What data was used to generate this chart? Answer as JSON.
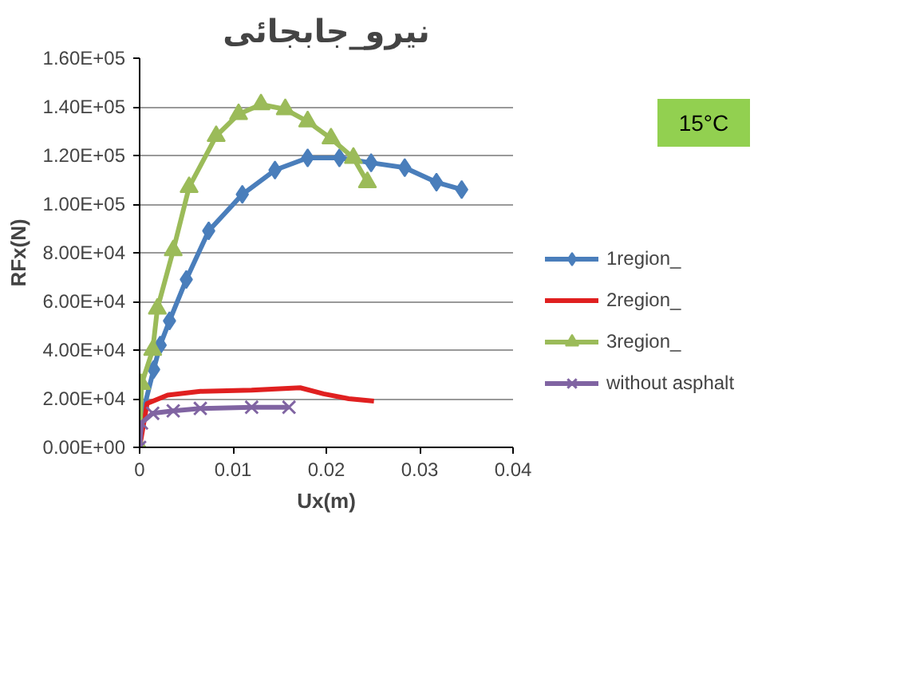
{
  "chart_data": {
    "type": "line",
    "title": "نیرو_جابجائی",
    "xlabel": "Ux(m)",
    "ylabel": "RFx(N)",
    "xlim": [
      0,
      0.04
    ],
    "xticks": [
      0,
      0.01,
      0.02,
      0.03,
      0.04
    ],
    "ylim": [
      0,
      160000
    ],
    "yticks": [
      {
        "value": 0,
        "label": "0.00E+00"
      },
      {
        "value": 20000,
        "label": "2.00E+04"
      },
      {
        "value": 40000,
        "label": "4.00E+04"
      },
      {
        "value": 60000,
        "label": "6.00E+04"
      },
      {
        "value": 80000,
        "label": "8.00E+04"
      },
      {
        "value": 100000,
        "label": "1.00E+05"
      },
      {
        "value": 120000,
        "label": "1.20E+05"
      },
      {
        "value": 140000,
        "label": "1.40E+05"
      },
      {
        "value": 160000,
        "label": "1.60E+05"
      }
    ],
    "grid": "y",
    "legend": "right",
    "annotations": [
      "15°C"
    ],
    "series": [
      {
        "name": "1region_",
        "color": "#4a7ebb",
        "marker": "diamond",
        "x": [
          0,
          0.0002,
          0.0015,
          0.0022,
          0.0032,
          0.005,
          0.0074,
          0.011,
          0.0145,
          0.018,
          0.0214,
          0.0248,
          0.0284,
          0.0318,
          0.0345
        ],
        "values": [
          0,
          12000,
          32000,
          42000,
          52000,
          69000,
          89000,
          104000,
          114000,
          119000,
          119000,
          117000,
          115000,
          109000,
          106000
        ]
      },
      {
        "name": "2region_",
        "color": "#e02020",
        "marker": "none",
        "x": [
          0,
          0.0008,
          0.003,
          0.0065,
          0.012,
          0.0172,
          0.0197,
          0.0224,
          0.0251
        ],
        "values": [
          0,
          18000,
          21500,
          23000,
          23500,
          24500,
          22000,
          20000,
          19000
        ]
      },
      {
        "name": "3region_",
        "color": "#9bbb59",
        "marker": "triangle",
        "x": [
          0,
          0.0002,
          0.0014,
          0.0019,
          0.0036,
          0.0053,
          0.0082,
          0.0106,
          0.013,
          0.0156,
          0.018,
          0.0205,
          0.0229,
          0.0244
        ],
        "values": [
          0,
          26000,
          40000,
          57000,
          81000,
          107000,
          128000,
          137000,
          141000,
          139000,
          134000,
          127000,
          119000,
          109000
        ]
      },
      {
        "name": "without asphalt",
        "color": "#8064a2",
        "marker": "cross",
        "x": [
          0,
          0.0002,
          0.0014,
          0.0036,
          0.0065,
          0.012,
          0.016
        ],
        "values": [
          0,
          10000,
          14000,
          15000,
          16000,
          16500,
          16500
        ]
      }
    ]
  }
}
